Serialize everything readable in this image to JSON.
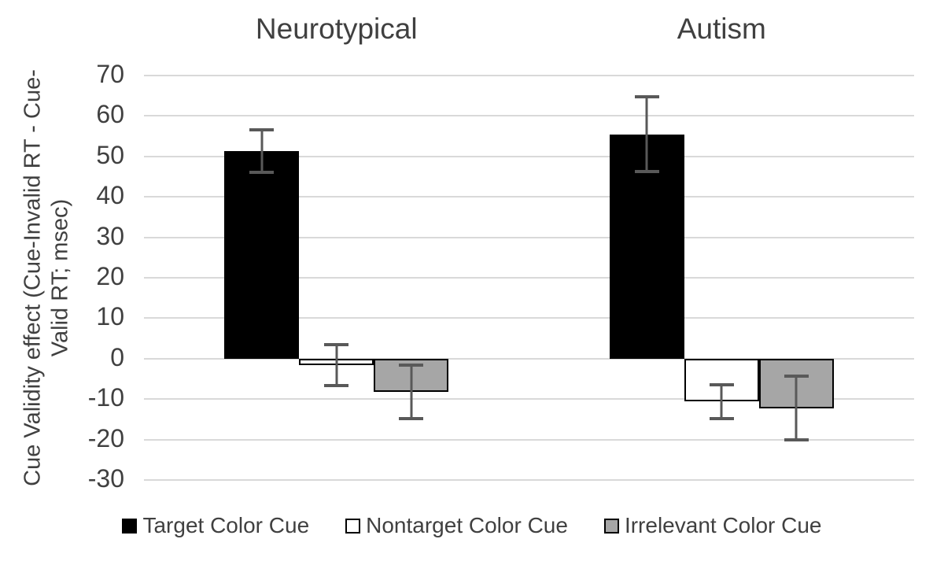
{
  "chart_data": {
    "type": "bar",
    "title": "",
    "categories": [
      "Neurotypical",
      "Autism"
    ],
    "series": [
      {
        "name": "Target Color Cue",
        "fill": "#000000",
        "border": "#000000",
        "values": [
          51.3,
          55.5
        ],
        "error_bars": [
          5.7,
          9.7
        ]
      },
      {
        "name": "Nontarget Color Cue",
        "fill": "#ffffff",
        "border": "#000000",
        "values": [
          -1.6,
          -10.6
        ],
        "error_bars": [
          5.5,
          4.6
        ]
      },
      {
        "name": "Irrelevant Color Cue",
        "fill": "#a6a6a6",
        "border": "#000000",
        "values": [
          -8.2,
          -12.2
        ],
        "error_bars": [
          7.0,
          8.3
        ]
      }
    ],
    "xlabel": "",
    "ylabel": "Cue Validity effect (Cue-Invalid RT - Cue-Valid RT; msec)",
    "ylabel_line1": "Cue Validity effect (Cue-Invalid RT - Cue-",
    "ylabel_line2": "Valid RT; msec)",
    "ylim": [
      -30,
      70
    ],
    "ytick_step": 10,
    "yticks": [
      70,
      60,
      50,
      40,
      30,
      20,
      10,
      0,
      -10,
      -20,
      -30
    ],
    "grid": true,
    "legend_position": "bottom",
    "colors": {
      "text": "#404040",
      "gridline": "#d9d9d9",
      "error_bar": "#595959",
      "background": "#ffffff"
    }
  }
}
